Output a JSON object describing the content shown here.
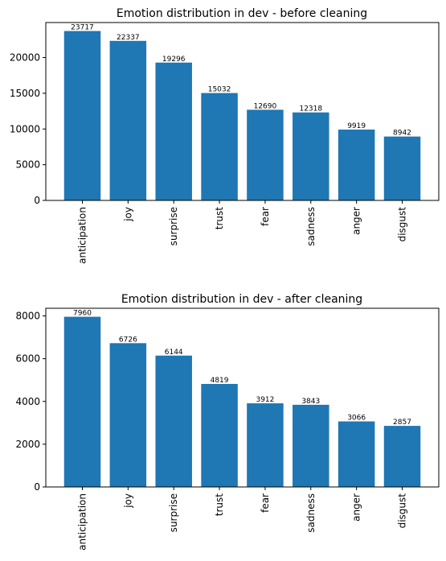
{
  "chart_data": [
    {
      "type": "bar",
      "title": "Emotion distribution in dev - before cleaning",
      "xlabel": "",
      "ylabel": "",
      "categories": [
        "anticipation",
        "joy",
        "surprise",
        "trust",
        "fear",
        "sadness",
        "anger",
        "disgust"
      ],
      "values": [
        23717,
        22337,
        19296,
        15032,
        12690,
        12318,
        9919,
        8942
      ],
      "yticks": [
        0,
        5000,
        10000,
        15000,
        20000
      ],
      "ylim": [
        0,
        24903
      ],
      "color": "#1f77b4",
      "grid": false,
      "legend": "none"
    },
    {
      "type": "bar",
      "title": "Emotion distribution in dev - after cleaning",
      "xlabel": "",
      "ylabel": "",
      "categories": [
        "anticipation",
        "joy",
        "surprise",
        "trust",
        "fear",
        "sadness",
        "anger",
        "disgust"
      ],
      "values": [
        7960,
        6726,
        6144,
        4819,
        3912,
        3843,
        3066,
        2857
      ],
      "yticks": [
        0,
        2000,
        4000,
        6000,
        8000
      ],
      "ylim": [
        0,
        8358
      ],
      "color": "#1f77b4",
      "grid": false,
      "legend": "none"
    }
  ]
}
